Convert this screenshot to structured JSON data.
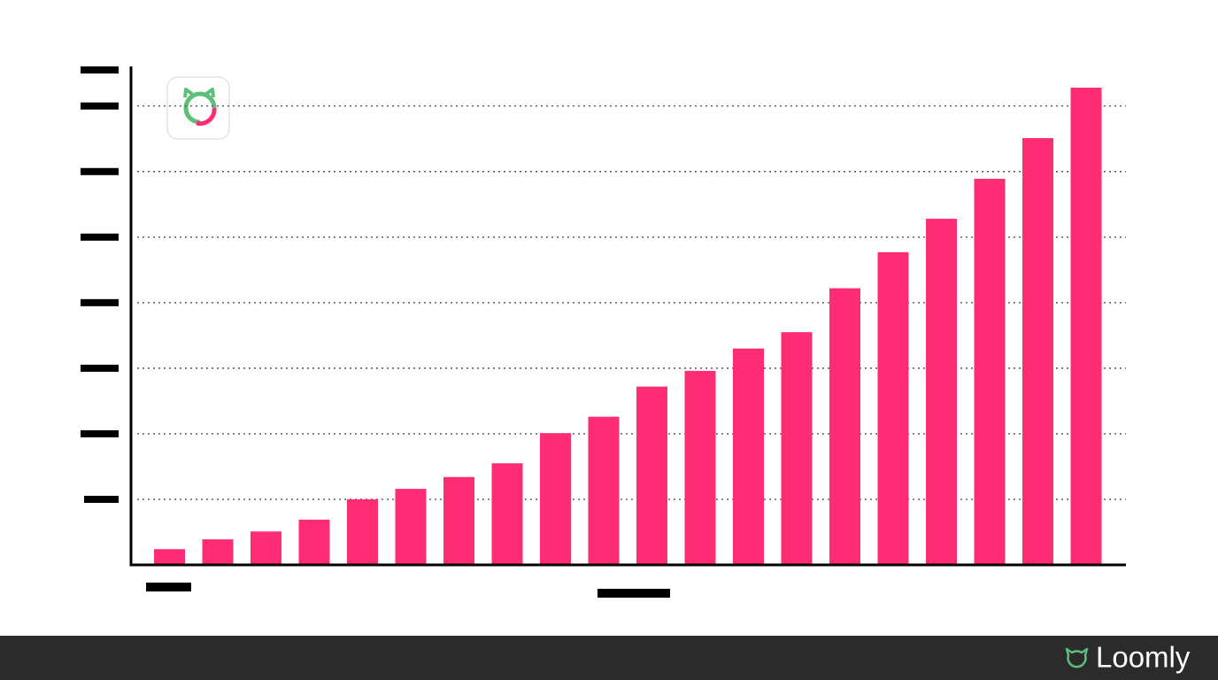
{
  "chart_data": {
    "type": "bar",
    "categories": [
      null,
      null,
      null,
      null,
      null,
      null,
      null,
      null,
      null,
      null,
      null,
      null,
      null,
      null,
      null,
      null,
      null,
      null,
      null,
      null
    ],
    "values": [
      0.24,
      0.39,
      0.51,
      0.69,
      1.0,
      1.16,
      1.34,
      1.55,
      2.01,
      2.26,
      2.72,
      2.96,
      3.3,
      3.55,
      4.22,
      4.77,
      5.28,
      5.89,
      6.51,
      7.28
    ],
    "color": "#fe2c74",
    "ylim": [
      0,
      7.55
    ],
    "yticks": [
      1,
      2,
      3,
      4,
      5,
      6,
      7
    ],
    "grid": true
  },
  "footer": {
    "brand": "Loomly"
  }
}
